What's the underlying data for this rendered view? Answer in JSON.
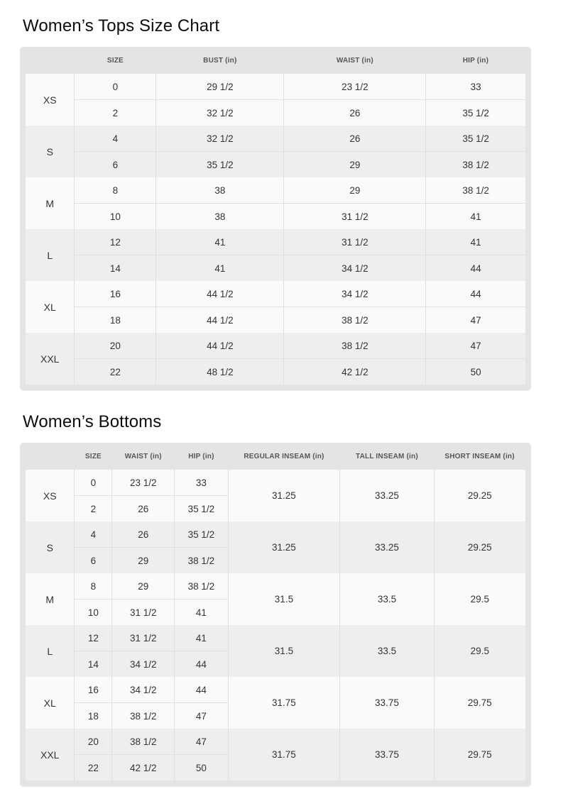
{
  "colors": {
    "page_background": "#ffffff",
    "table_frame": "#e4e4e4",
    "row_group_light": "#fafafa",
    "row_group_dark": "#eeeeee",
    "divider": "#e0e0e0",
    "header_text": "#54565a",
    "cell_text": "#333333",
    "title_text": "#0d0d0d"
  },
  "tables": [
    {
      "title": "Women’s Tops Size Chart",
      "columns": [
        "",
        "SIZE",
        "BUST (in)",
        "WAIST (in)",
        "HIP (in)"
      ],
      "col_widths": [
        "9.8%",
        "16.3%",
        "25.6%",
        "28.4%",
        "19.9%"
      ],
      "groups": [
        {
          "label": "XS",
          "rows": [
            [
              "0",
              "29 1/2",
              "23 1/2",
              "33"
            ],
            [
              "2",
              "32 1/2",
              "26",
              "35 1/2"
            ]
          ]
        },
        {
          "label": "S",
          "rows": [
            [
              "4",
              "32 1/2",
              "26",
              "35 1/2"
            ],
            [
              "6",
              "35 1/2",
              "29",
              "38 1/2"
            ]
          ]
        },
        {
          "label": "M",
          "rows": [
            [
              "8",
              "38",
              "29",
              "38 1/2"
            ],
            [
              "10",
              "38",
              "31 1/2",
              "41"
            ]
          ]
        },
        {
          "label": "L",
          "rows": [
            [
              "12",
              "41",
              "31 1/2",
              "41"
            ],
            [
              "14",
              "41",
              "34 1/2",
              "44"
            ]
          ]
        },
        {
          "label": "XL",
          "rows": [
            [
              "16",
              "44 1/2",
              "34 1/2",
              "44"
            ],
            [
              "18",
              "44 1/2",
              "38 1/2",
              "47"
            ]
          ]
        },
        {
          "label": "XXL",
          "rows": [
            [
              "20",
              "44 1/2",
              "38 1/2",
              "47"
            ],
            [
              "22",
              "48 1/2",
              "42 1/2",
              "50"
            ]
          ]
        }
      ]
    },
    {
      "title": "Women’s Bottoms",
      "columns": [
        "",
        "SIZE",
        "WAIST (in)",
        "HIP (in)",
        "REGULAR INSEAM (in)",
        "TALL INSEAM (in)",
        "SHORT INSEAM (in)"
      ],
      "col_widths": [
        "9.8%",
        "7.5%",
        "12.5%",
        "10.7%",
        "22.4%",
        "18.8%",
        "18.3%"
      ],
      "groups": [
        {
          "label": "XS",
          "rows": [
            [
              "0",
              "23 1/2",
              "33"
            ],
            [
              "2",
              "26",
              "35 1/2"
            ]
          ],
          "merged": [
            "31.25",
            "33.25",
            "29.25"
          ]
        },
        {
          "label": "S",
          "rows": [
            [
              "4",
              "26",
              "35 1/2"
            ],
            [
              "6",
              "29",
              "38 1/2"
            ]
          ],
          "merged": [
            "31.25",
            "33.25",
            "29.25"
          ]
        },
        {
          "label": "M",
          "rows": [
            [
              "8",
              "29",
              "38 1/2"
            ],
            [
              "10",
              "31 1/2",
              "41"
            ]
          ],
          "merged": [
            "31.5",
            "33.5",
            "29.5"
          ]
        },
        {
          "label": "L",
          "rows": [
            [
              "12",
              "31 1/2",
              "41"
            ],
            [
              "14",
              "34 1/2",
              "44"
            ]
          ],
          "merged": [
            "31.5",
            "33.5",
            "29.5"
          ]
        },
        {
          "label": "XL",
          "rows": [
            [
              "16",
              "34 1/2",
              "44"
            ],
            [
              "18",
              "38 1/2",
              "47"
            ]
          ],
          "merged": [
            "31.75",
            "33.75",
            "29.75"
          ]
        },
        {
          "label": "XXL",
          "rows": [
            [
              "20",
              "38 1/2",
              "47"
            ],
            [
              "22",
              "42 1/2",
              "50"
            ]
          ],
          "merged": [
            "31.75",
            "33.75",
            "29.75"
          ]
        }
      ]
    }
  ]
}
